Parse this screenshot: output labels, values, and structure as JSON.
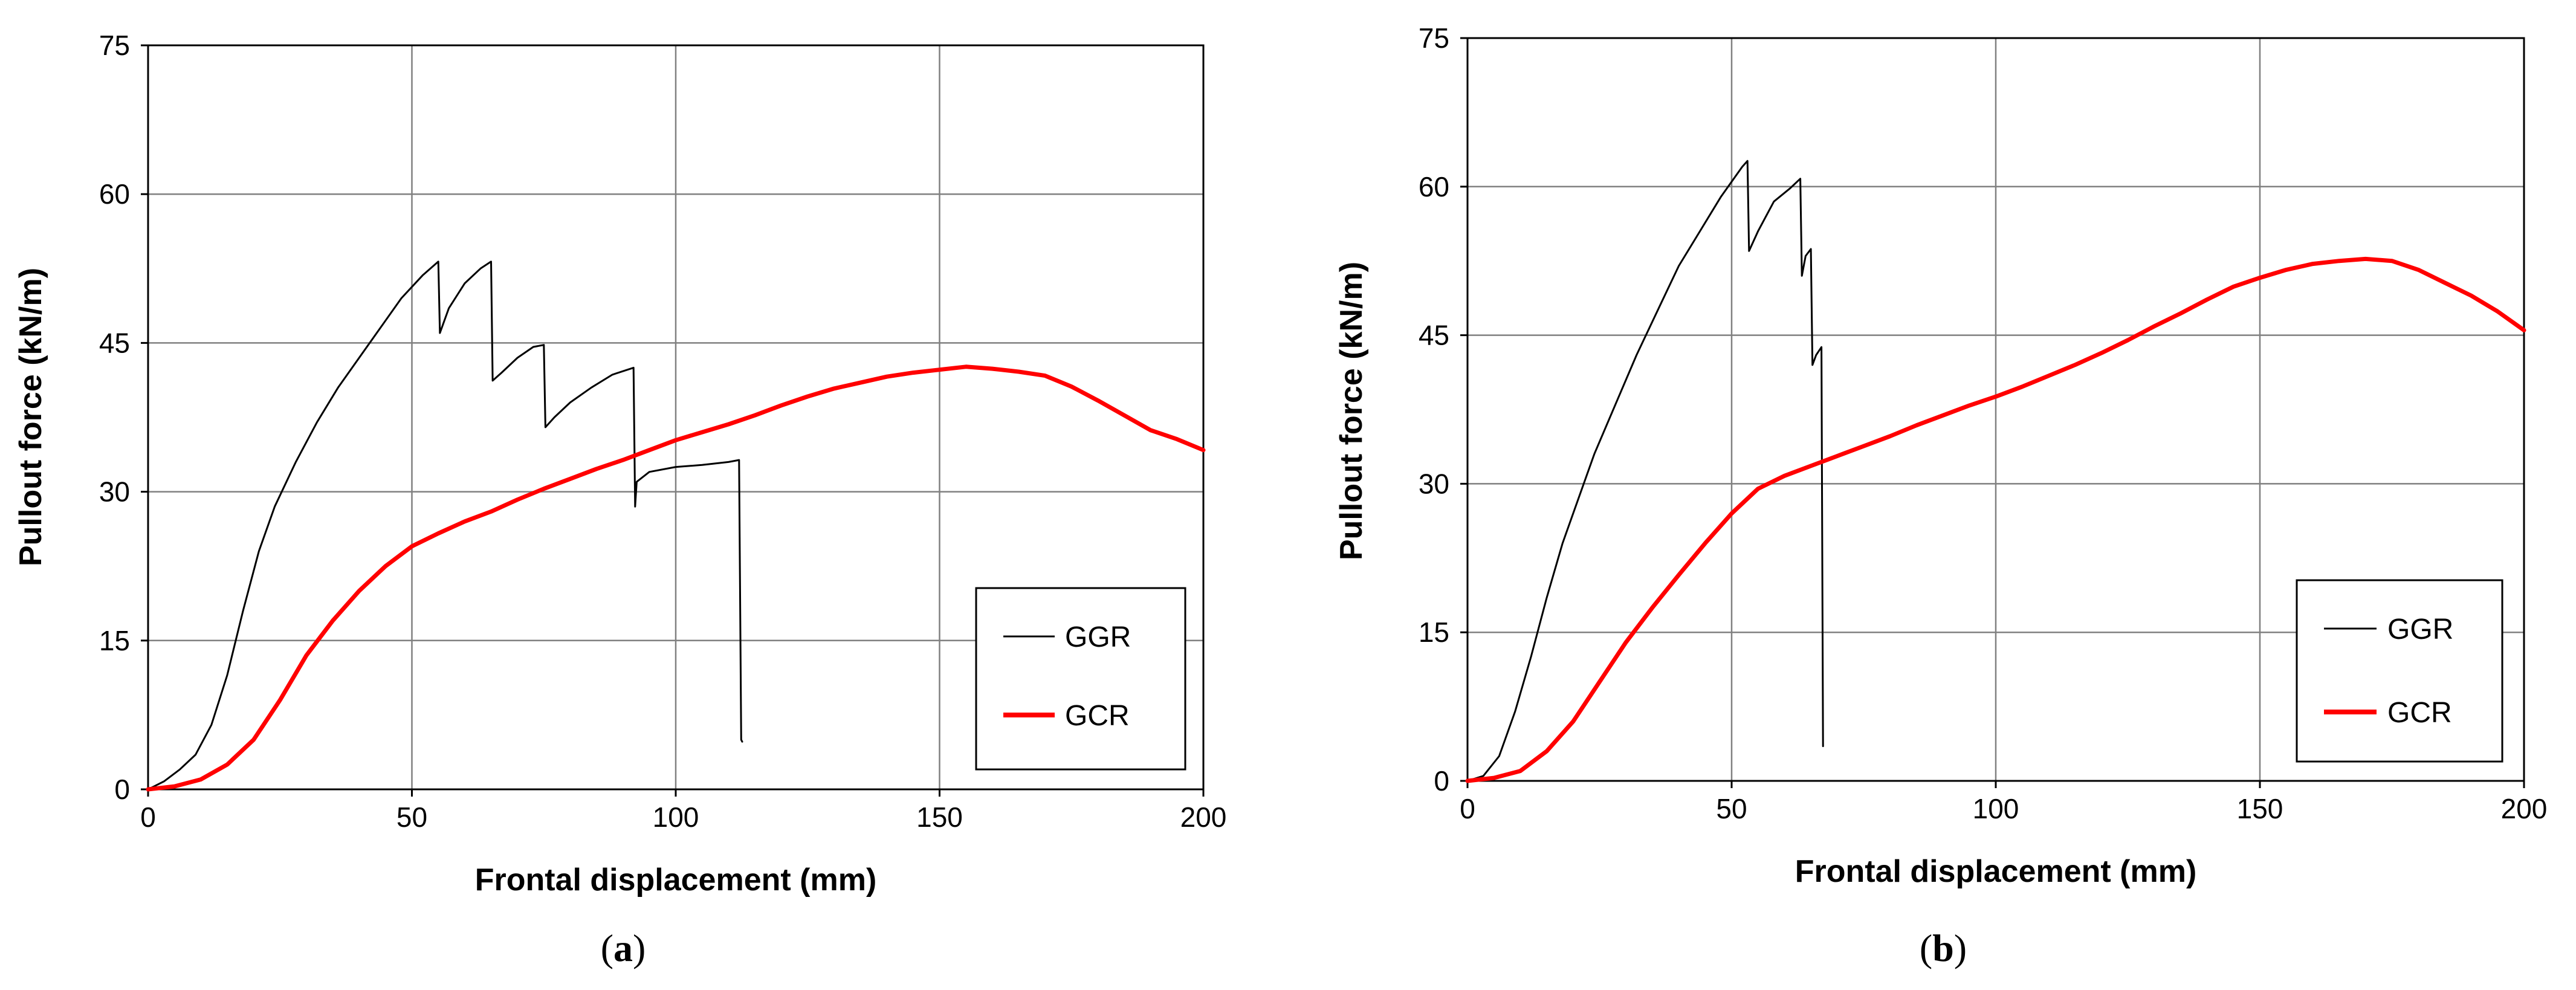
{
  "chart_data": [
    {
      "type": "line",
      "panel_label": "a",
      "xlabel": "Frontal displacement  (mm)",
      "ylabel": "Pullout force (kN/m)",
      "xlim": [
        0,
        200
      ],
      "ylim": [
        0,
        75
      ],
      "x_ticks": [
        0,
        50,
        100,
        150,
        200
      ],
      "y_ticks": [
        0,
        15,
        30,
        45,
        60,
        75
      ],
      "grid": true,
      "legend_position": "bottom-right",
      "series": [
        {
          "name": "GGR",
          "color": "#000000",
          "style": "thin",
          "points": [
            [
              0,
              0
            ],
            [
              3,
              0.8
            ],
            [
              6,
              2
            ],
            [
              9,
              3.5
            ],
            [
              12,
              6.5
            ],
            [
              15,
              11.5
            ],
            [
              18,
              18
            ],
            [
              21,
              24
            ],
            [
              24,
              28.5
            ],
            [
              28,
              33
            ],
            [
              32,
              37
            ],
            [
              36,
              40.5
            ],
            [
              40,
              43.5
            ],
            [
              44,
              46.5
            ],
            [
              48,
              49.5
            ],
            [
              52,
              51.8
            ],
            [
              55,
              53.2
            ],
            [
              55.3,
              46
            ],
            [
              57,
              48.5
            ],
            [
              60,
              51
            ],
            [
              63,
              52.5
            ],
            [
              65,
              53.2
            ],
            [
              65.3,
              41.2
            ],
            [
              67,
              42
            ],
            [
              70,
              43.5
            ],
            [
              73,
              44.6
            ],
            [
              75,
              44.8
            ],
            [
              75.3,
              36.5
            ],
            [
              77,
              37.5
            ],
            [
              80,
              39
            ],
            [
              84,
              40.5
            ],
            [
              88,
              41.8
            ],
            [
              92,
              42.5
            ],
            [
              92.3,
              28.5
            ],
            [
              92.6,
              31
            ],
            [
              95,
              32
            ],
            [
              100,
              32.5
            ],
            [
              105,
              32.7
            ],
            [
              110,
              33
            ],
            [
              112,
              33.2
            ],
            [
              112.4,
              5
            ],
            [
              112.6,
              4.8
            ]
          ]
        },
        {
          "name": "GCR",
          "color": "#ff0000",
          "style": "thick",
          "points": [
            [
              0,
              0
            ],
            [
              5,
              0.3
            ],
            [
              10,
              1
            ],
            [
              15,
              2.5
            ],
            [
              20,
              5
            ],
            [
              25,
              9
            ],
            [
              30,
              13.5
            ],
            [
              35,
              17
            ],
            [
              40,
              20
            ],
            [
              45,
              22.5
            ],
            [
              50,
              24.5
            ],
            [
              55,
              25.8
            ],
            [
              60,
              27
            ],
            [
              65,
              28
            ],
            [
              70,
              29.2
            ],
            [
              75,
              30.3
            ],
            [
              80,
              31.3
            ],
            [
              85,
              32.3
            ],
            [
              90,
              33.2
            ],
            [
              95,
              34.2
            ],
            [
              100,
              35.2
            ],
            [
              105,
              36
            ],
            [
              110,
              36.8
            ],
            [
              115,
              37.7
            ],
            [
              120,
              38.7
            ],
            [
              125,
              39.6
            ],
            [
              130,
              40.4
            ],
            [
              135,
              41
            ],
            [
              140,
              41.6
            ],
            [
              145,
              42
            ],
            [
              150,
              42.3
            ],
            [
              155,
              42.6
            ],
            [
              160,
              42.4
            ],
            [
              165,
              42.1
            ],
            [
              170,
              41.7
            ],
            [
              175,
              40.6
            ],
            [
              180,
              39.2
            ],
            [
              185,
              37.7
            ],
            [
              190,
              36.2
            ],
            [
              195,
              35.3
            ],
            [
              200,
              34.2
            ]
          ]
        }
      ]
    },
    {
      "type": "line",
      "panel_label": "b",
      "xlabel": "Frontal displacement  (mm)",
      "ylabel": "Pullout force (kN/m)",
      "xlim": [
        0,
        200
      ],
      "ylim": [
        0,
        75
      ],
      "x_ticks": [
        0,
        50,
        100,
        150,
        200
      ],
      "y_ticks": [
        0,
        15,
        30,
        45,
        60,
        75
      ],
      "grid": true,
      "legend_position": "bottom-right",
      "series": [
        {
          "name": "GGR",
          "color": "#000000",
          "style": "thin",
          "points": [
            [
              0,
              0
            ],
            [
              3,
              0.5
            ],
            [
              6,
              2.5
            ],
            [
              9,
              7
            ],
            [
              12,
              12.5
            ],
            [
              15,
              18.5
            ],
            [
              18,
              24
            ],
            [
              21,
              28.5
            ],
            [
              24,
              33
            ],
            [
              28,
              38
            ],
            [
              32,
              43
            ],
            [
              36,
              47.5
            ],
            [
              40,
              52
            ],
            [
              44,
              55.5
            ],
            [
              48,
              59
            ],
            [
              52,
              62
            ],
            [
              53,
              62.6
            ],
            [
              53.3,
              53.5
            ],
            [
              55,
              55.5
            ],
            [
              58,
              58.5
            ],
            [
              61,
              59.8
            ],
            [
              63,
              60.8
            ],
            [
              63.3,
              51
            ],
            [
              64,
              53
            ],
            [
              65,
              53.7
            ],
            [
              65.3,
              42
            ],
            [
              66,
              43
            ],
            [
              67,
              43.8
            ],
            [
              67.3,
              3.5
            ]
          ]
        },
        {
          "name": "GCR",
          "color": "#ff0000",
          "style": "thick",
          "points": [
            [
              0,
              0
            ],
            [
              5,
              0.3
            ],
            [
              10,
              1
            ],
            [
              15,
              3
            ],
            [
              20,
              6
            ],
            [
              25,
              10
            ],
            [
              30,
              14
            ],
            [
              35,
              17.5
            ],
            [
              40,
              20.8
            ],
            [
              45,
              24
            ],
            [
              50,
              27
            ],
            [
              55,
              29.5
            ],
            [
              60,
              30.8
            ],
            [
              65,
              31.8
            ],
            [
              70,
              32.8
            ],
            [
              75,
              33.8
            ],
            [
              80,
              34.8
            ],
            [
              85,
              35.9
            ],
            [
              90,
              36.9
            ],
            [
              95,
              37.9
            ],
            [
              100,
              38.8
            ],
            [
              105,
              39.8
            ],
            [
              110,
              40.9
            ],
            [
              115,
              42
            ],
            [
              120,
              43.2
            ],
            [
              125,
              44.5
            ],
            [
              130,
              45.9
            ],
            [
              135,
              47.2
            ],
            [
              140,
              48.6
            ],
            [
              145,
              49.9
            ],
            [
              150,
              50.8
            ],
            [
              155,
              51.6
            ],
            [
              160,
              52.2
            ],
            [
              165,
              52.5
            ],
            [
              170,
              52.7
            ],
            [
              175,
              52.5
            ],
            [
              180,
              51.6
            ],
            [
              185,
              50.3
            ],
            [
              190,
              49
            ],
            [
              195,
              47.4
            ],
            [
              200,
              45.5
            ]
          ]
        }
      ]
    }
  ]
}
